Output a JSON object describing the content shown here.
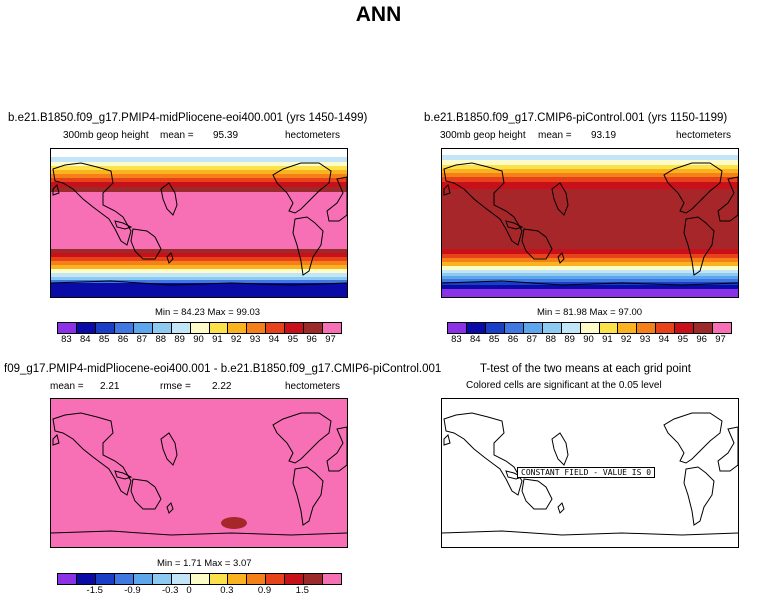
{
  "title": "ANN",
  "panels": [
    {
      "title": "b.e21.B1850.f09_g17.PMIP4-midPliocene-eoi400.001 (yrs 1450-1499)",
      "subtitle_left": "300mb  geop  height",
      "mean_label": "mean =",
      "mean_value": "95.39",
      "units": "hectometers",
      "min_max": "Min =   84.23  Max =   99.03"
    },
    {
      "title": "b.e21.B1850.f09_g17.CMIP6-piControl.001 (yrs 1150-1199)",
      "subtitle_left": "300mb  geop  height",
      "mean_label": "mean =",
      "mean_value": "93.19",
      "units": "hectometers",
      "min_max": "Min =   81.98  Max =   97.00"
    },
    {
      "title": "f09_g17.PMIP4-midPliocene-eoi400.001 - b.e21.B1850.f09_g17.CMIP6-piControl.001",
      "mean_label": "mean =",
      "mean_value": "2.21",
      "rmse_label": "rmse =",
      "rmse_value": "2.22",
      "units": "hectometers",
      "min_max": "Min =   1.71  Max =   3.07"
    },
    {
      "title": "T-test of the two means at each grid point",
      "subtitle": "Colored cells are significant at the 0.05 level",
      "constant_field": "CONSTANT FIELD - VALUE IS 0"
    }
  ],
  "chart_data": [
    {
      "type": "heatmap",
      "title": "b.e21.B1850.f09_g17.PMIP4-midPliocene-eoi400.001 (yrs 1450-1499)",
      "variable": "300mb geop height",
      "units": "hectometers",
      "mean": 95.39,
      "min": 84.23,
      "max": 99.03,
      "colorbar_levels": [
        83,
        84,
        85,
        86,
        87,
        88,
        89,
        90,
        91,
        92,
        93,
        94,
        95,
        96,
        97
      ]
    },
    {
      "type": "heatmap",
      "title": "b.e21.B1850.f09_g17.CMIP6-piControl.001 (yrs 1150-1199)",
      "variable": "300mb geop height",
      "units": "hectometers",
      "mean": 93.19,
      "min": 81.98,
      "max": 97.0,
      "colorbar_levels": [
        83,
        84,
        85,
        86,
        87,
        88,
        89,
        90,
        91,
        92,
        93,
        94,
        95,
        96,
        97
      ]
    },
    {
      "type": "heatmap",
      "title": "f09_g17.PMIP4-midPliocene-eoi400.001 - b.e21.B1850.f09_g17.CMIP6-piControl.001",
      "units": "hectometers",
      "mean": 2.21,
      "rmse": 2.22,
      "min": 1.71,
      "max": 3.07,
      "colorbar_labels": [
        "-1.5",
        "-0.9",
        "-0.3",
        "0",
        "0.3",
        "0.9",
        "1.5"
      ]
    },
    {
      "type": "heatmap",
      "title": "T-test of the two means at each grid point",
      "note": "Colored cells are significant at the 0.05 level",
      "constant_field_value": 0
    }
  ],
  "colors": {
    "palette": [
      "#8b31e6",
      "#0a0aa6",
      "#1a3ec6",
      "#3e78e0",
      "#5ea6ec",
      "#8ccaf2",
      "#c2e6f8",
      "#fdfbc8",
      "#fbe24a",
      "#fab21e",
      "#f5801a",
      "#e8421a",
      "#c8101a",
      "#9c2a2a",
      "#f76fb5"
    ],
    "pink": "#f76fb5",
    "darkred": "#a6262a"
  }
}
